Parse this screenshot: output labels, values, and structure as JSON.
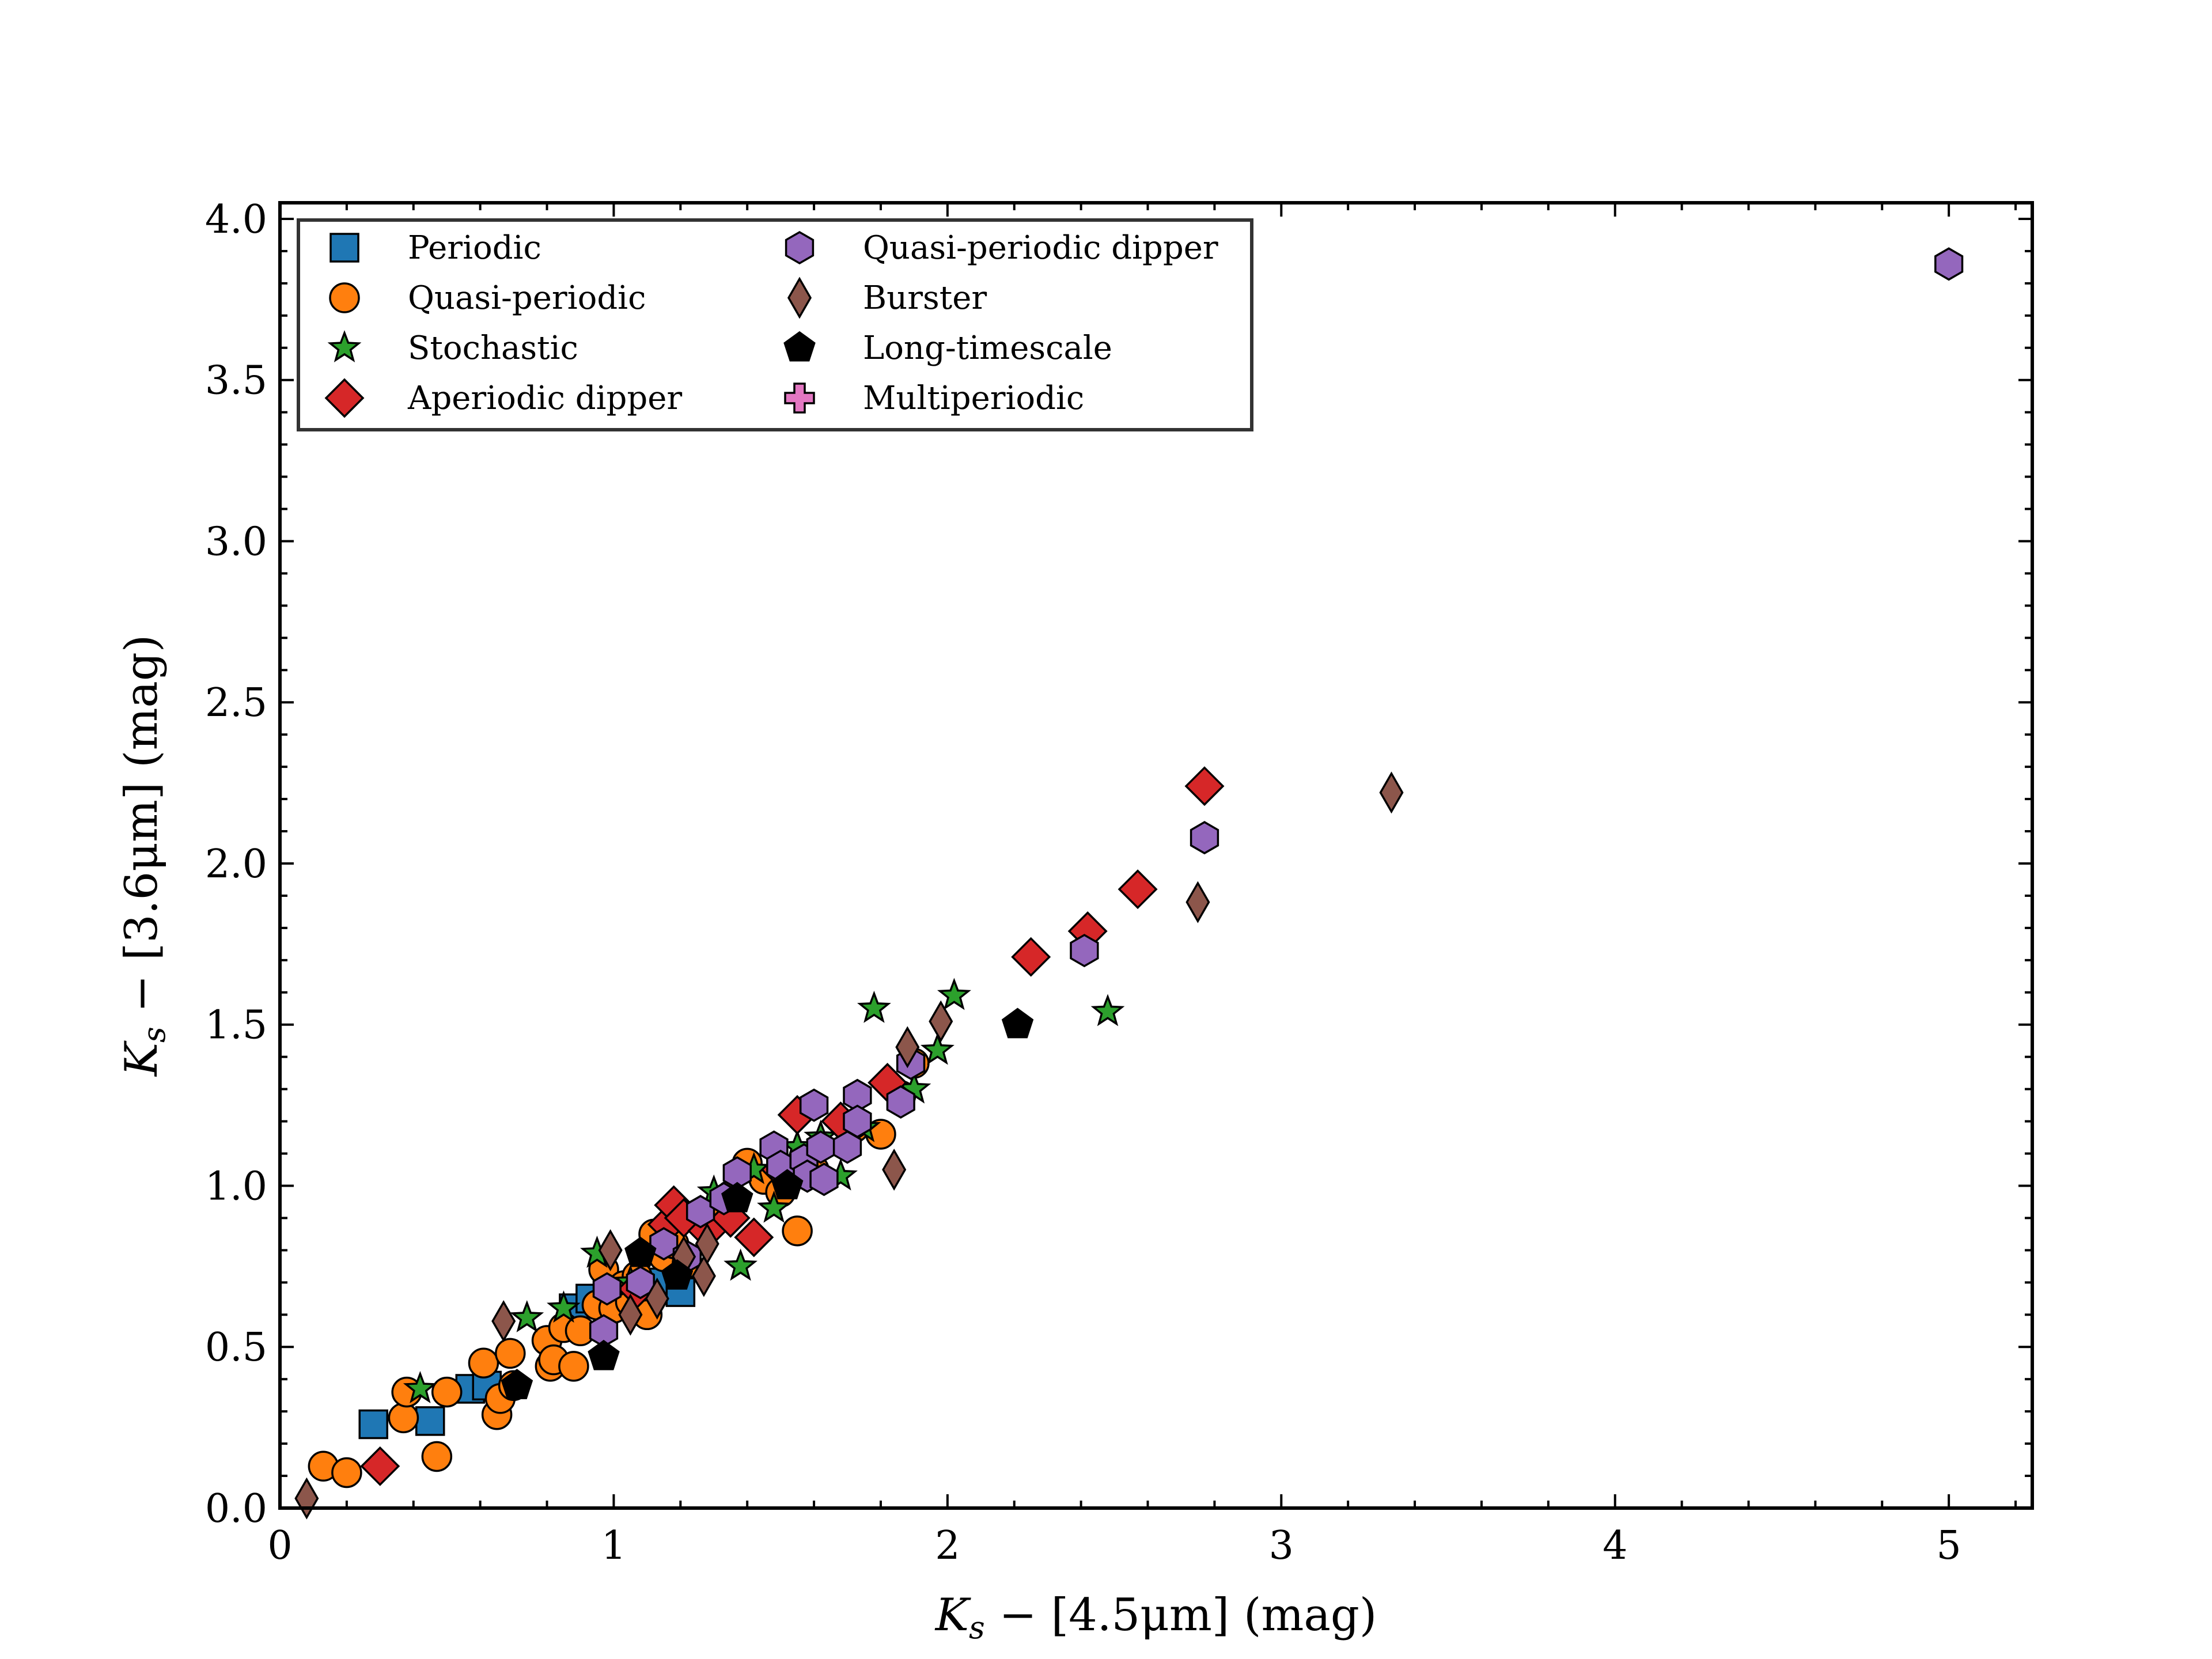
{
  "chart_data": {
    "type": "scatter",
    "title": "",
    "xlabel": "K_s − [4.5μm] (mag)",
    "ylabel": "K_s − [3.6μm] (mag)",
    "xlabel_parts": {
      "var": "K",
      "sub": "s",
      "rest": " − [4.5μm] (mag)"
    },
    "ylabel_parts": {
      "var": "K",
      "sub": "s",
      "rest": " − [3.6μm] (mag)"
    },
    "xlim": [
      0,
      5.25
    ],
    "ylim": [
      0,
      4.05
    ],
    "x_ticks": [
      "0",
      "1",
      "2",
      "3",
      "4",
      "5"
    ],
    "y_ticks": [
      "0.0",
      "0.5",
      "1.0",
      "1.5",
      "2.0",
      "2.5",
      "3.0",
      "3.5",
      "4.0"
    ],
    "grid": false,
    "legend_position": "top-left",
    "series": [
      {
        "name": "Periodic",
        "marker": "square",
        "color": "#1f77b4",
        "points": [
          [
            0.28,
            0.26
          ],
          [
            0.45,
            0.27
          ],
          [
            0.57,
            0.37
          ],
          [
            0.62,
            0.38
          ],
          [
            0.88,
            0.62
          ],
          [
            0.93,
            0.65
          ],
          [
            1.12,
            0.7
          ],
          [
            1.2,
            0.67
          ]
        ]
      },
      {
        "name": "Quasi-periodic",
        "marker": "circle",
        "color": "#ff7f0e",
        "points": [
          [
            0.13,
            0.13
          ],
          [
            0.2,
            0.11
          ],
          [
            0.37,
            0.28
          ],
          [
            0.38,
            0.36
          ],
          [
            0.47,
            0.16
          ],
          [
            0.5,
            0.36
          ],
          [
            0.61,
            0.45
          ],
          [
            0.65,
            0.29
          ],
          [
            0.66,
            0.34
          ],
          [
            0.69,
            0.48
          ],
          [
            0.7,
            0.38
          ],
          [
            0.8,
            0.52
          ],
          [
            0.81,
            0.44
          ],
          [
            0.82,
            0.46
          ],
          [
            0.85,
            0.56
          ],
          [
            0.88,
            0.44
          ],
          [
            0.9,
            0.55
          ],
          [
            0.95,
            0.63
          ],
          [
            0.97,
            0.74
          ],
          [
            1.0,
            0.62
          ],
          [
            1.03,
            0.69
          ],
          [
            1.05,
            0.64
          ],
          [
            1.07,
            0.72
          ],
          [
            1.1,
            0.6
          ],
          [
            1.12,
            0.85
          ],
          [
            1.15,
            0.78
          ],
          [
            1.18,
            0.82
          ],
          [
            1.22,
            0.76
          ],
          [
            1.28,
            0.88
          ],
          [
            1.32,
            0.93
          ],
          [
            1.35,
            0.97
          ],
          [
            1.4,
            1.07
          ],
          [
            1.45,
            1.02
          ],
          [
            1.5,
            0.98
          ],
          [
            1.55,
            0.86
          ],
          [
            1.6,
            1.05
          ],
          [
            1.72,
            1.18
          ],
          [
            1.8,
            1.16
          ],
          [
            1.86,
            1.28
          ],
          [
            1.9,
            1.38
          ]
        ]
      },
      {
        "name": "Stochastic",
        "marker": "star",
        "color": "#2ca02c",
        "points": [
          [
            0.42,
            0.37
          ],
          [
            0.74,
            0.59
          ],
          [
            0.85,
            0.62
          ],
          [
            0.95,
            0.79
          ],
          [
            1.05,
            0.7
          ],
          [
            1.3,
            0.98
          ],
          [
            1.38,
            0.75
          ],
          [
            1.42,
            1.05
          ],
          [
            1.48,
            0.93
          ],
          [
            1.55,
            1.12
          ],
          [
            1.62,
            1.15
          ],
          [
            1.68,
            1.03
          ],
          [
            1.75,
            1.18
          ],
          [
            1.78,
            1.55
          ],
          [
            1.9,
            1.3
          ],
          [
            1.97,
            1.42
          ],
          [
            2.02,
            1.59
          ],
          [
            2.48,
            1.54
          ]
        ]
      },
      {
        "name": "Aperiodic dipper",
        "marker": "diamond",
        "color": "#d62728",
        "points": [
          [
            0.3,
            0.13
          ],
          [
            1.07,
            0.68
          ],
          [
            1.16,
            0.88
          ],
          [
            1.18,
            0.94
          ],
          [
            1.21,
            0.9
          ],
          [
            1.28,
            0.86
          ],
          [
            1.35,
            0.9
          ],
          [
            1.42,
            0.84
          ],
          [
            1.5,
            1.05
          ],
          [
            1.55,
            1.22
          ],
          [
            1.68,
            1.2
          ],
          [
            1.82,
            1.32
          ],
          [
            2.25,
            1.71
          ],
          [
            2.42,
            1.79
          ],
          [
            2.57,
            1.92
          ],
          [
            2.77,
            2.24
          ]
        ]
      },
      {
        "name": "Quasi-periodic dipper",
        "marker": "hexagon",
        "color": "#9467bd",
        "points": [
          [
            0.97,
            0.55
          ],
          [
            0.98,
            0.68
          ],
          [
            1.08,
            0.7
          ],
          [
            1.15,
            0.82
          ],
          [
            1.22,
            0.78
          ],
          [
            1.26,
            0.92
          ],
          [
            1.33,
            0.96
          ],
          [
            1.37,
            1.04
          ],
          [
            1.48,
            1.12
          ],
          [
            1.5,
            1.06
          ],
          [
            1.57,
            1.08
          ],
          [
            1.58,
            1.03
          ],
          [
            1.6,
            1.25
          ],
          [
            1.62,
            1.12
          ],
          [
            1.63,
            1.02
          ],
          [
            1.7,
            1.12
          ],
          [
            1.73,
            1.28
          ],
          [
            1.73,
            1.2
          ],
          [
            1.86,
            1.26
          ],
          [
            1.89,
            1.38
          ],
          [
            2.41,
            1.73
          ],
          [
            2.77,
            2.08
          ],
          [
            5.0,
            3.86
          ]
        ]
      },
      {
        "name": "Burster",
        "marker": "thin-diamond",
        "color": "#8c564b",
        "points": [
          [
            0.08,
            0.03
          ],
          [
            0.67,
            0.58
          ],
          [
            0.99,
            0.8
          ],
          [
            1.05,
            0.6
          ],
          [
            1.13,
            0.65
          ],
          [
            1.21,
            0.78
          ],
          [
            1.27,
            0.72
          ],
          [
            1.28,
            0.82
          ],
          [
            1.84,
            1.05
          ],
          [
            1.88,
            1.43
          ],
          [
            1.98,
            1.51
          ],
          [
            2.75,
            1.88
          ],
          [
            3.33,
            2.22
          ]
        ]
      },
      {
        "name": "Long-timescale",
        "marker": "pentagon",
        "color": "#000000",
        "points": [
          [
            0.71,
            0.38
          ],
          [
            0.97,
            0.47
          ],
          [
            1.08,
            0.79
          ],
          [
            1.19,
            0.72
          ],
          [
            1.37,
            0.96
          ],
          [
            1.52,
            1.0
          ],
          [
            2.21,
            1.5
          ]
        ]
      },
      {
        "name": "Multiperiodic",
        "marker": "plus",
        "color": "#e377c2",
        "points": []
      }
    ]
  }
}
